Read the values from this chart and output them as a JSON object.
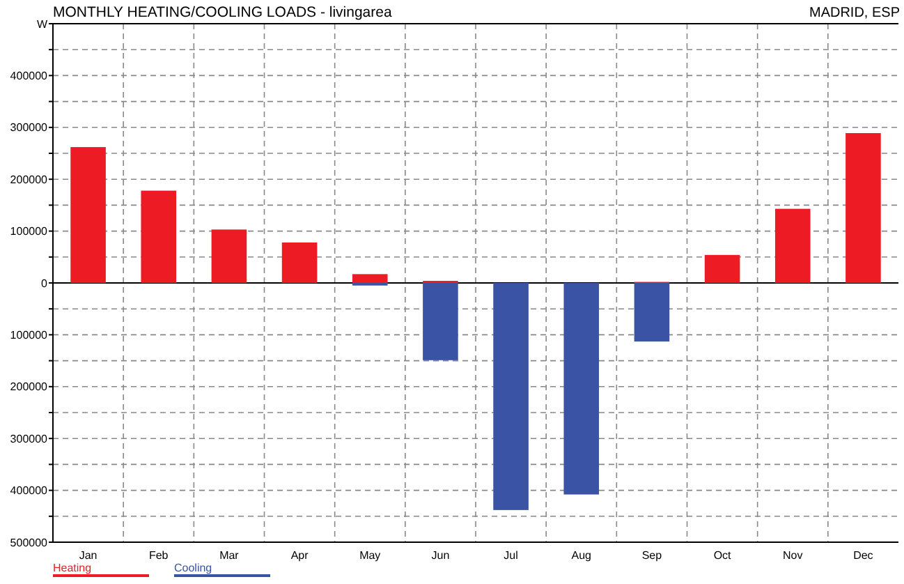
{
  "chart_data": {
    "type": "bar",
    "title": "MONTHLY HEATING/COOLING LOADS - livingarea",
    "ylabel": "W",
    "annotations": [
      "MADRID, ESP"
    ],
    "categories": [
      "Jan",
      "Feb",
      "Mar",
      "Apr",
      "May",
      "Jun",
      "Jul",
      "Aug",
      "Sep",
      "Oct",
      "Nov",
      "Dec"
    ],
    "series": [
      {
        "name": "Heating",
        "color": "#ed1c24",
        "values": [
          262000,
          178000,
          103000,
          78000,
          17000,
          4000,
          0,
          0,
          2000,
          54000,
          143000,
          289000
        ]
      },
      {
        "name": "Cooling",
        "color": "#3a53a4",
        "values": [
          0,
          0,
          0,
          0,
          -5000,
          -149000,
          -438000,
          -408000,
          -113000,
          0,
          0,
          0
        ]
      }
    ],
    "ylim": [
      -500000,
      500000
    ],
    "yticks": [
      {
        "value": 500000,
        "label": null
      },
      {
        "value": 450000,
        "label": null
      },
      400000,
      {
        "value": 350000,
        "label": null
      },
      300000,
      {
        "value": 250000,
        "label": null
      },
      200000,
      {
        "value": 150000,
        "label": null
      },
      100000,
      {
        "value": 50000,
        "label": null
      },
      0,
      {
        "value": -50000,
        "label": null
      },
      {
        "value": -100000,
        "label": "100000"
      },
      {
        "value": -150000,
        "label": null
      },
      {
        "value": -200000,
        "label": "200000"
      },
      {
        "value": -250000,
        "label": null
      },
      {
        "value": -300000,
        "label": "300000"
      },
      {
        "value": -350000,
        "label": null
      },
      {
        "value": -400000,
        "label": "400000"
      },
      {
        "value": -450000,
        "label": null
      },
      {
        "value": -500000,
        "label": "500000"
      }
    ],
    "grid": true,
    "legend": "bottom left"
  }
}
